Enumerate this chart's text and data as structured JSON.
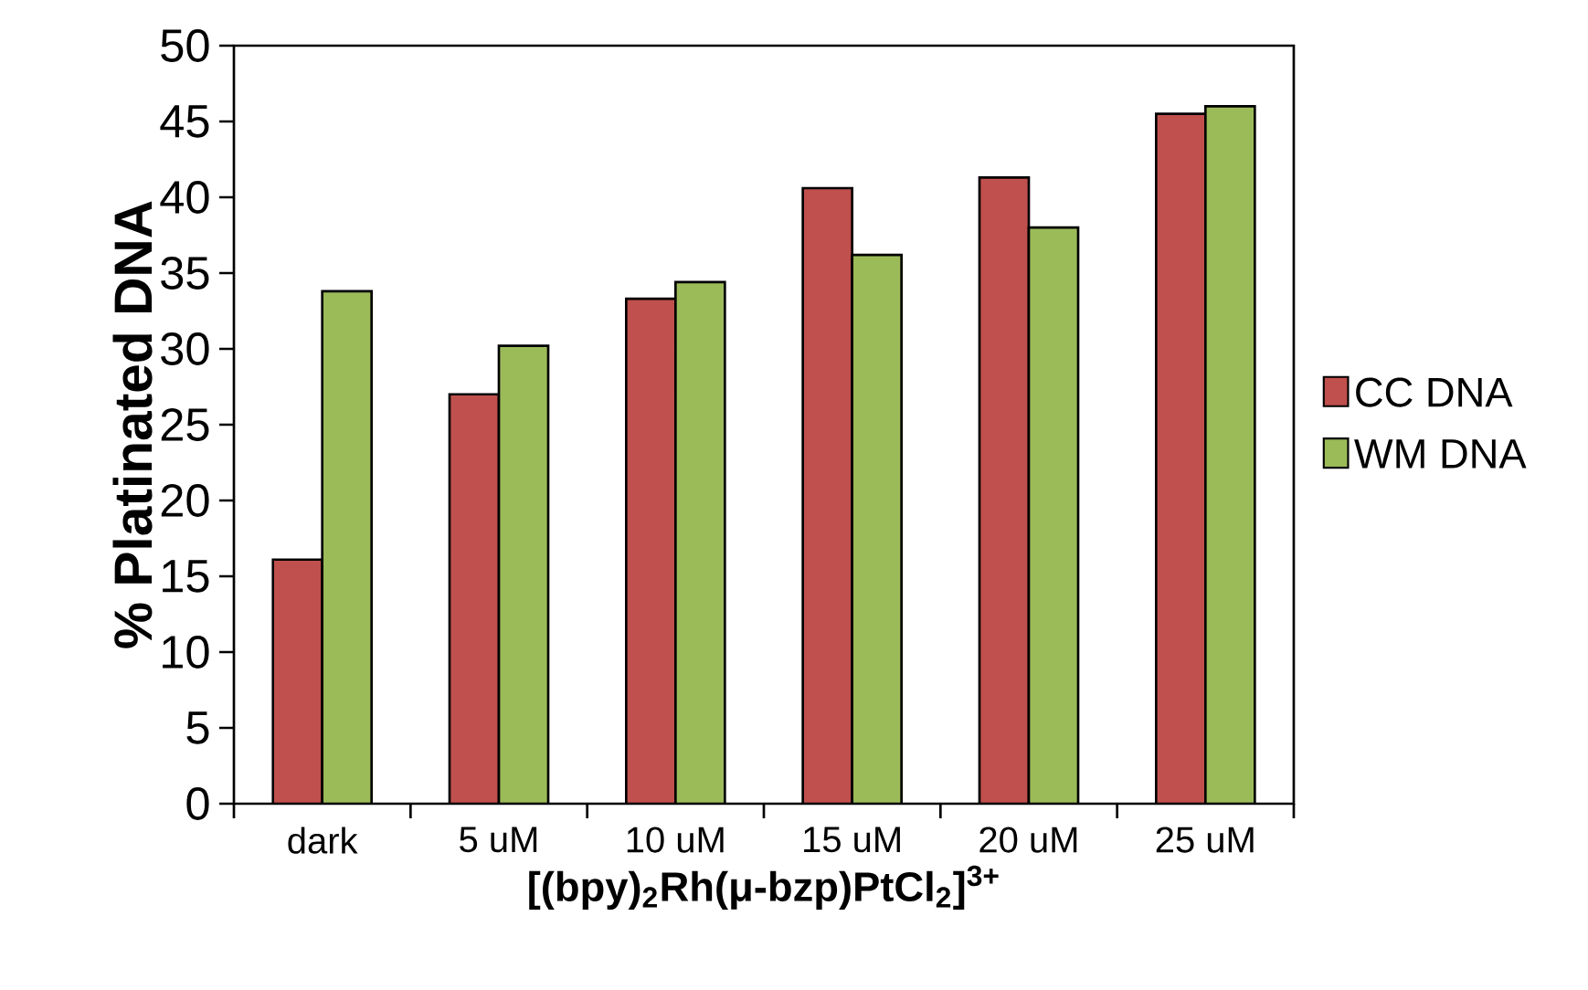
{
  "chart_data": {
    "type": "bar",
    "xlabel": "**[(bpy)$_{2}$Rh(μ-bzp)PtCl$_{2}$]$^{3+}$**",
    "ylabel": "% Platinated DNA",
    "categories": [
      "dark",
      "5 uM",
      "10 uM",
      "15 uM",
      "20 uM",
      "25 uM"
    ],
    "series": [
      {
        "name": "CC DNA",
        "color": "#c0504d",
        "values": [
          16.1,
          27.0,
          33.3,
          40.6,
          41.3,
          45.5
        ]
      },
      {
        "name": "WM DNA",
        "color": "#9bbb59",
        "values": [
          33.8,
          30.2,
          34.4,
          36.2,
          38.0,
          46.0
        ]
      }
    ],
    "ylim": [
      0,
      50
    ],
    "yticks": [
      0,
      5,
      10,
      15,
      20,
      25,
      30,
      35,
      40,
      45,
      50
    ],
    "grid": false,
    "legend": "right"
  }
}
